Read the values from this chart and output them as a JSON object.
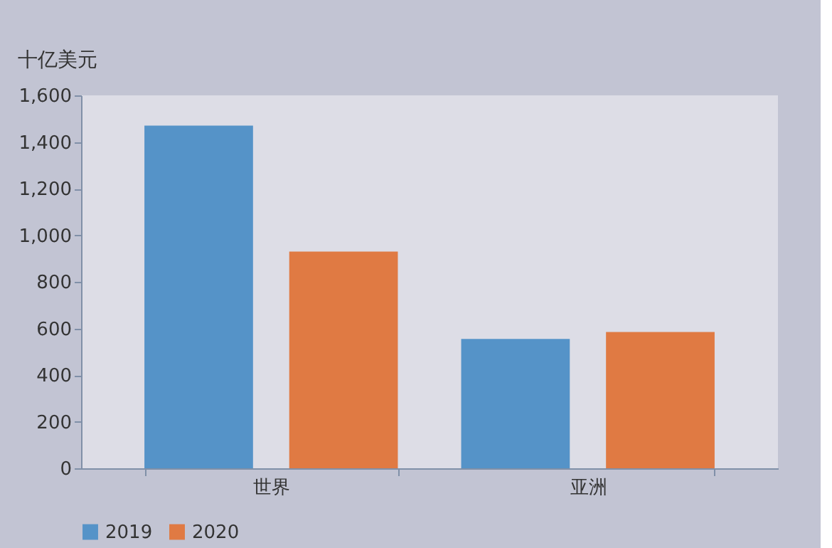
{
  "chart_data": {
    "type": "bar",
    "ylabel": "十亿美元",
    "categories": [
      "世界",
      "亚洲"
    ],
    "series": [
      {
        "name": "2019",
        "color": "#5593c8",
        "values": [
          1470,
          555
        ]
      },
      {
        "name": "2020",
        "color": "#e07a43",
        "values": [
          930,
          585
        ]
      }
    ],
    "ylim": [
      0,
      1600
    ],
    "yticks": [
      0,
      200,
      400,
      600,
      800,
      {
        "value": 1000,
        "label": "1,000"
      },
      {
        "value": 1200,
        "label": "1,200"
      },
      {
        "value": 1400,
        "label": "1,400"
      },
      {
        "value": 1600,
        "label": "1,600"
      }
    ],
    "grid": false,
    "legend": "bottom"
  }
}
